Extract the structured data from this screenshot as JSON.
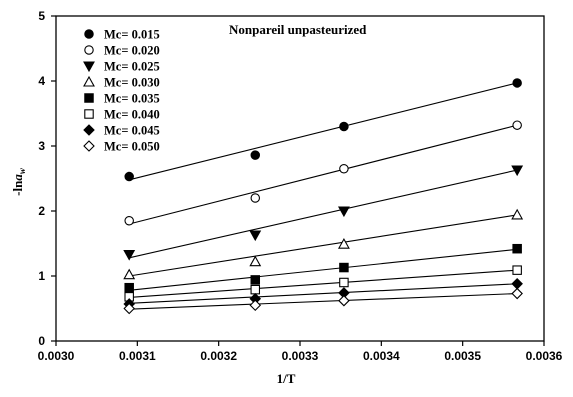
{
  "chart_data": {
    "type": "scatter",
    "title": "Nonpareil unpasteurized",
    "xlabel": "1/T",
    "ylabel_prefix": "-ln",
    "ylabel_var": "a",
    "ylabel_sub": "w",
    "xlim": [
      0.003,
      0.0036
    ],
    "ylim": [
      0,
      5
    ],
    "xticks": [
      0.003,
      0.0031,
      0.0032,
      0.0033,
      0.0034,
      0.0035,
      0.0036
    ],
    "xtick_labels": [
      "0.0030",
      "0.0031",
      "0.0032",
      "0.0033",
      "0.0034",
      "0.0035",
      "0.0036"
    ],
    "yticks": [
      0,
      1,
      2,
      3,
      4,
      5
    ],
    "ytick_labels": [
      "0",
      "1",
      "2",
      "3",
      "4",
      "5"
    ],
    "legend_position": "top-left",
    "grid": false,
    "x": [
      0.00309,
      0.003245,
      0.003354,
      0.003567
    ],
    "series": [
      {
        "name": "Mc= 0.015",
        "marker": "circle",
        "filled": true,
        "values": [
          2.53,
          2.86,
          3.3,
          3.97
        ],
        "fit": [
          2.48,
          3.97
        ]
      },
      {
        "name": "Mc= 0.020",
        "marker": "circle",
        "filled": false,
        "values": [
          1.85,
          2.2,
          2.65,
          3.32
        ],
        "fit": [
          1.8,
          3.32
        ]
      },
      {
        "name": "Mc= 0.025",
        "marker": "triangle-down",
        "filled": true,
        "values": [
          1.33,
          1.63,
          2.0,
          2.63
        ],
        "fit": [
          1.28,
          2.63
        ]
      },
      {
        "name": "Mc= 0.030",
        "marker": "triangle-up",
        "filled": false,
        "values": [
          1.02,
          1.22,
          1.49,
          1.94
        ],
        "fit": [
          1.0,
          1.94
        ]
      },
      {
        "name": "Mc= 0.035",
        "marker": "square",
        "filled": true,
        "values": [
          0.82,
          0.94,
          1.13,
          1.42
        ],
        "fit": [
          0.78,
          1.41
        ]
      },
      {
        "name": "Mc= 0.040",
        "marker": "square",
        "filled": false,
        "values": [
          0.68,
          0.79,
          0.9,
          1.09
        ],
        "fit": [
          0.67,
          1.09
        ]
      },
      {
        "name": "Mc= 0.045",
        "marker": "diamond",
        "filled": true,
        "values": [
          0.57,
          0.65,
          0.74,
          0.88
        ],
        "fit": [
          0.58,
          0.88
        ]
      },
      {
        "name": "Mc= 0.050",
        "marker": "diamond",
        "filled": false,
        "values": [
          0.5,
          0.55,
          0.62,
          0.73
        ],
        "fit": [
          0.49,
          0.73
        ]
      }
    ]
  }
}
